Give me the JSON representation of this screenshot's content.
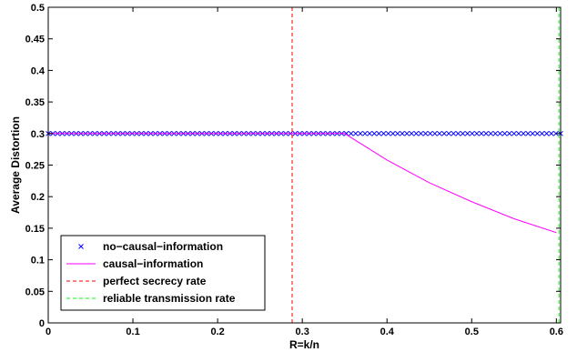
{
  "chart_data": {
    "type": "line",
    "title": "",
    "xlabel": "R=k/n",
    "ylabel": "Average Distortion",
    "xlim": [
      0,
      0.605
    ],
    "ylim": [
      0,
      0.5
    ],
    "xticks": [
      "0",
      "0.1",
      "0.2",
      "0.3",
      "0.4",
      "0.5",
      "0.6"
    ],
    "yticks": [
      "0",
      "0.05",
      "0.1",
      "0.15",
      "0.2",
      "0.25",
      "0.3",
      "0.35",
      "0.4",
      "0.45",
      "0.5"
    ],
    "grid": false,
    "legend_position": "bottom-left",
    "series": [
      {
        "name": "no−causal−information",
        "style": "markers",
        "marker": "x",
        "color": "#0000ff",
        "x_range": [
          0,
          0.605
        ],
        "x_step": 0.0055,
        "y_constant": 0.3
      },
      {
        "name": "causal−information",
        "style": "solid",
        "color": "#ff00ff",
        "x": [
          0,
          0.1,
          0.2,
          0.3,
          0.35,
          0.4,
          0.45,
          0.5,
          0.55,
          0.6
        ],
        "y": [
          0.3,
          0.3,
          0.3,
          0.3,
          0.3,
          0.258,
          0.222,
          0.192,
          0.165,
          0.143
        ]
      },
      {
        "name": "perfect secrecy rate",
        "style": "dashed-vertical",
        "color": "#ff0000",
        "x_value": 0.288
      },
      {
        "name": "reliable transmission rate",
        "style": "dashed-vertical",
        "color": "#00ff00",
        "x_value": 0.603
      }
    ]
  }
}
